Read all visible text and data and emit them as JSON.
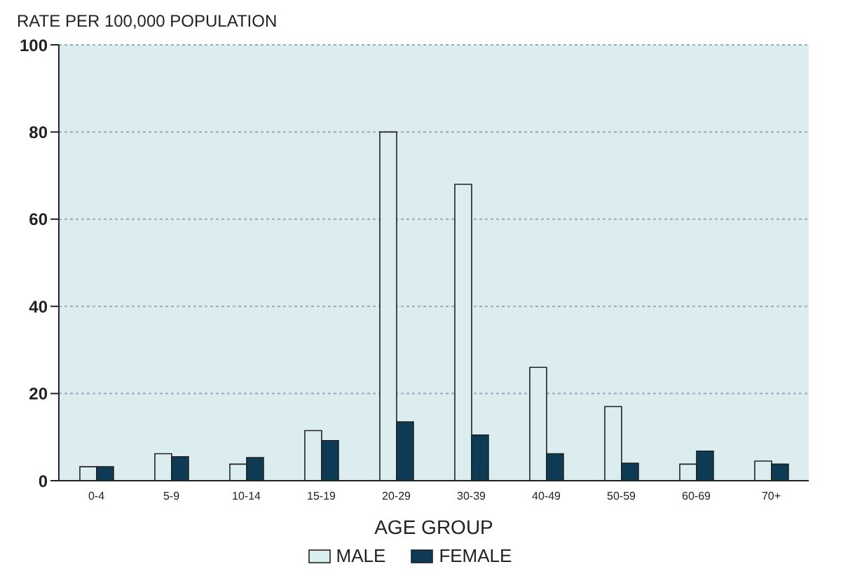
{
  "chart_data": {
    "type": "bar",
    "ylabel": "RATE PER 100,000 POPULATION",
    "xlabel": "AGE GROUP",
    "categories": [
      "0-4",
      "5-9",
      "10-14",
      "15-19",
      "20-29",
      "30-39",
      "40-49",
      "50-59",
      "60-69",
      "70+"
    ],
    "series": [
      {
        "name": "MALE",
        "color": "#dcedf0",
        "values": [
          3.2,
          6.2,
          3.8,
          11.5,
          80,
          68,
          26,
          17,
          3.8,
          4.5
        ]
      },
      {
        "name": "FEMALE",
        "color": "#0d3b55",
        "values": [
          3.2,
          5.5,
          5.3,
          9.2,
          13.5,
          10.5,
          6.2,
          4,
          6.8,
          3.8
        ]
      }
    ],
    "ylim": [
      0,
      100
    ],
    "yticks": [
      0,
      20,
      40,
      60,
      80,
      100
    ],
    "grid": "y",
    "legend": "bottom"
  }
}
